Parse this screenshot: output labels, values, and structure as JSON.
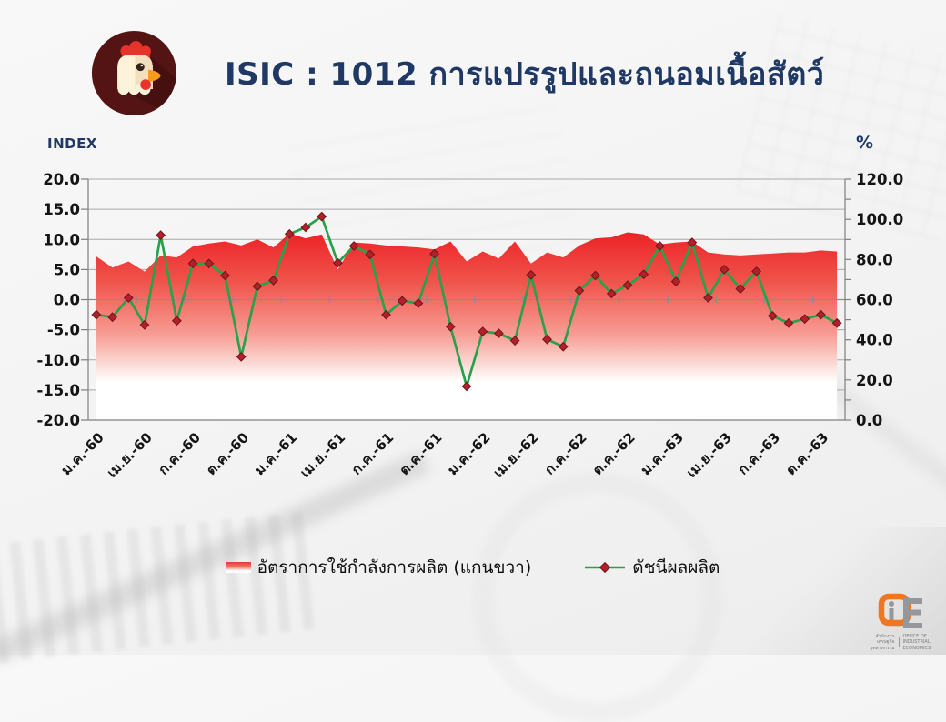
{
  "header": {
    "title": "ISIC : 1012 การแปรรูปและถนอมเนื้อสัตว์",
    "icon": "chicken-icon"
  },
  "legend": [
    {
      "label": "อัตราการใช้กำลังการผลิต (แกนขวา)",
      "swatch": "red-gradient-area"
    },
    {
      "label": "ดัชนีผลผลิต",
      "swatch": "green-line-red-diamond"
    }
  ],
  "footer_logo": {
    "thai": "สำนักงานเศรษฐกิจอุตสาหกรรม",
    "english": "OFFICE OF INDUSTRIAL ECONOMICS"
  },
  "colors": {
    "title": "#1f3864",
    "area_red": "#ec2025",
    "line_green": "#2aa04a",
    "marker_red": "#b2202a",
    "icon_maroon": "#541414",
    "axis_gray": "#7f7f7f"
  },
  "chart_data": {
    "type": "combo",
    "n_points": 47,
    "x_tick_every": 3,
    "x_tick_labels": [
      "ม.ค.-60",
      "เม.ย.-60",
      "ก.ค.-60",
      "ต.ค.-60",
      "ม.ค.-61",
      "เม.ย.-61",
      "ก.ค.-61",
      "ต.ค.-61",
      "ม.ค.-62",
      "เม.ย.-62",
      "ก.ค.-62",
      "ต.ค.-62",
      "ม.ค.-63",
      "เม.ย.-63",
      "ก.ค.-63",
      "ต.ค.-63"
    ],
    "left_axis": {
      "label": "INDEX",
      "min": -20,
      "max": 20,
      "step": 5,
      "tick_labels": [
        "20.0",
        "15.0",
        "10.0",
        "5.0",
        "0.0",
        "-5.0",
        "-10.0",
        "-15.0",
        "-20.0"
      ]
    },
    "right_axis": {
      "label": "%",
      "min": 0,
      "max": 120,
      "step": 20,
      "minor_step": 10,
      "tick_labels": [
        "120.0",
        "100.0",
        "80.0",
        "60.0",
        "40.0",
        "20.0",
        "0.0"
      ]
    },
    "grid": "horizontal",
    "legend_position": "bottom",
    "series": [
      {
        "name": "อัตราการใช้กำลังการผลิต (แกนขวา)",
        "type": "area",
        "axis": "right",
        "color": "#ec2025",
        "values": [
          81.5,
          76,
          79,
          74,
          82,
          81,
          86.5,
          88,
          89,
          87,
          90,
          86,
          93,
          90.5,
          92.5,
          75,
          88.5,
          88,
          87,
          86.5,
          86,
          85,
          89,
          79,
          84,
          80.5,
          89,
          78,
          83.5,
          81,
          87,
          90.5,
          91,
          93.5,
          92.5,
          87.5,
          88.5,
          89,
          83.5,
          82.5,
          82,
          82.5,
          83,
          83.5,
          83.5,
          84.5,
          84
        ]
      },
      {
        "name": "ดัชนีผลผลิต",
        "type": "line",
        "axis": "left",
        "color": "#2aa04a",
        "marker": "diamond",
        "marker_color": "#b2202a",
        "values": [
          -2.5,
          -2.9,
          0.3,
          -4.2,
          10.7,
          -3.5,
          6.0,
          6.0,
          4.0,
          -9.5,
          2.2,
          3.2,
          10.9,
          12.0,
          13.8,
          6.1,
          8.9,
          7.5,
          -2.5,
          -0.2,
          -0.6,
          7.6,
          -4.5,
          -14.4,
          -5.3,
          -5.6,
          -6.8,
          4.1,
          -6.6,
          -7.8,
          1.5,
          4.0,
          1.0,
          2.4,
          4.2,
          8.9,
          3.0,
          9.5,
          0.3,
          5.0,
          1.8,
          4.7,
          -2.7,
          -3.9,
          -3.2,
          -2.5,
          -3.9
        ]
      }
    ]
  }
}
